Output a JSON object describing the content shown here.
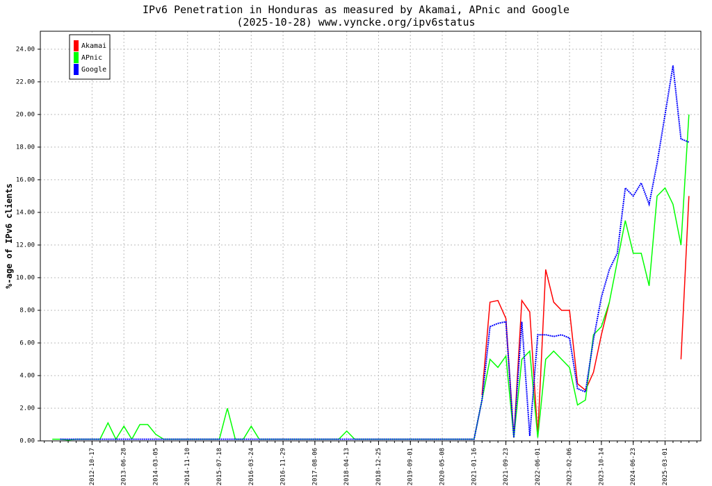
{
  "chart_data": {
    "type": "line",
    "title": "IPv6 Penetration in Honduras as measured by Akamai, APnic and Google",
    "subtitle": "(2025-10-28) www.vyncke.org/ipv6status",
    "y_label": "%-age of IPv6 clients",
    "categories": [
      null,
      null,
      null,
      null,
      null,
      null,
      "2012-10-17",
      null,
      null,
      null,
      "2013-06-28",
      null,
      null,
      null,
      "2014-03-05",
      null,
      null,
      null,
      "2014-11-10",
      null,
      null,
      null,
      "2015-07-18",
      null,
      null,
      null,
      "2016-03-24",
      null,
      null,
      null,
      "2016-11-29",
      null,
      null,
      null,
      "2017-08-06",
      null,
      null,
      null,
      "2018-04-13",
      null,
      null,
      null,
      "2018-12-25",
      null,
      null,
      null,
      "2019-09-01",
      null,
      null,
      null,
      "2020-05-08",
      null,
      null,
      null,
      "2021-01-16",
      null,
      null,
      null,
      "2021-09-23",
      null,
      null,
      null,
      "2022-06-01",
      null,
      null,
      null,
      "2023-02-06",
      null,
      null,
      null,
      "2023-10-14",
      null,
      null,
      null,
      "2024-06-23",
      null,
      null,
      null,
      "2025-03-01",
      null,
      null,
      null,
      null
    ],
    "series": [
      {
        "name": "Akamai",
        "color": "#ff0000",
        "values": [
          null,
          null,
          null,
          null,
          null,
          null,
          null,
          null,
          null,
          null,
          null,
          null,
          null,
          null,
          null,
          null,
          null,
          null,
          null,
          null,
          null,
          null,
          null,
          null,
          null,
          null,
          null,
          null,
          null,
          null,
          null,
          null,
          null,
          null,
          null,
          null,
          null,
          null,
          null,
          null,
          null,
          null,
          null,
          null,
          null,
          null,
          null,
          null,
          null,
          null,
          null,
          null,
          null,
          null,
          null,
          2.8,
          8.5,
          8.6,
          7.5,
          0.2,
          8.6,
          7.9,
          0.3,
          10.5,
          8.5,
          8.0,
          8.0,
          3.5,
          3.1,
          4.2,
          6.5,
          8.5,
          null,
          null,
          null,
          null,
          null,
          null,
          null,
          null,
          5.0,
          15.0,
          null
        ]
      },
      {
        "name": "APnic",
        "color": "#00ff00",
        "values": [
          null,
          0.1,
          0.1,
          0.05,
          0.1,
          0.1,
          0.1,
          0.1,
          1.1,
          0.1,
          0.9,
          0.1,
          1.0,
          1.0,
          0.4,
          0.1,
          0.1,
          0.1,
          0.1,
          0.1,
          0.1,
          0.1,
          0.1,
          2.0,
          0.1,
          0.1,
          0.9,
          0.1,
          0.1,
          0.1,
          0.1,
          0.1,
          0.1,
          0.1,
          0.1,
          0.1,
          0.1,
          0.1,
          0.6,
          0.1,
          0.1,
          0.1,
          0.1,
          0.1,
          0.1,
          0.1,
          0.1,
          0.1,
          0.1,
          0.1,
          0.1,
          0.1,
          0.1,
          0.1,
          0.1,
          2.5,
          5.0,
          4.5,
          5.2,
          0.2,
          5.0,
          5.5,
          0.2,
          5.0,
          5.5,
          5.0,
          4.5,
          2.2,
          2.5,
          6.5,
          7.0,
          8.5,
          11.0,
          13.5,
          11.5,
          11.5,
          9.5,
          15.0,
          15.5,
          14.5,
          12.0,
          20.0,
          null
        ]
      },
      {
        "name": "Google",
        "color": "#0000ff",
        "values": [
          null,
          null,
          0.1,
          0.1,
          0.1,
          0.1,
          0.1,
          0.1,
          0.1,
          0.1,
          0.1,
          0.1,
          0.1,
          0.1,
          0.1,
          0.1,
          0.1,
          0.1,
          0.1,
          0.1,
          0.1,
          0.1,
          0.1,
          0.1,
          0.1,
          0.1,
          0.1,
          0.1,
          0.1,
          0.1,
          0.1,
          0.1,
          0.1,
          0.1,
          0.1,
          0.1,
          0.1,
          0.1,
          0.1,
          0.1,
          0.1,
          0.1,
          0.1,
          0.1,
          0.1,
          0.1,
          0.1,
          0.1,
          0.1,
          0.1,
          0.1,
          0.1,
          0.1,
          0.1,
          0.1,
          2.5,
          7.0,
          7.2,
          7.3,
          0.2,
          7.3,
          0.3,
          6.5,
          6.5,
          6.4,
          6.5,
          6.3,
          3.2,
          3.0,
          6.2,
          8.8,
          10.5,
          11.5,
          15.5,
          15.0,
          15.8,
          14.5,
          17.0,
          20.0,
          23.0,
          18.5,
          18.3,
          null
        ]
      }
    ],
    "ylim": [
      0,
      25.1
    ],
    "yticks": [
      {
        "value": 0,
        "label": "0.00"
      },
      {
        "value": 2,
        "label": "2.00"
      },
      {
        "value": 4,
        "label": "4.00"
      },
      {
        "value": 6,
        "label": "6.00"
      },
      {
        "value": 8,
        "label": "8.00"
      },
      {
        "value": 10,
        "label": "10.00"
      },
      {
        "value": 12,
        "label": "12.00"
      },
      {
        "value": 14,
        "label": "14.00"
      },
      {
        "value": 16,
        "label": "16.00"
      },
      {
        "value": 18,
        "label": "18.00"
      },
      {
        "value": 20,
        "label": "20.00"
      },
      {
        "value": 22,
        "label": "22.00"
      },
      {
        "value": 24,
        "label": "24.00"
      }
    ],
    "grid": true,
    "legend_position": "upper-left"
  }
}
